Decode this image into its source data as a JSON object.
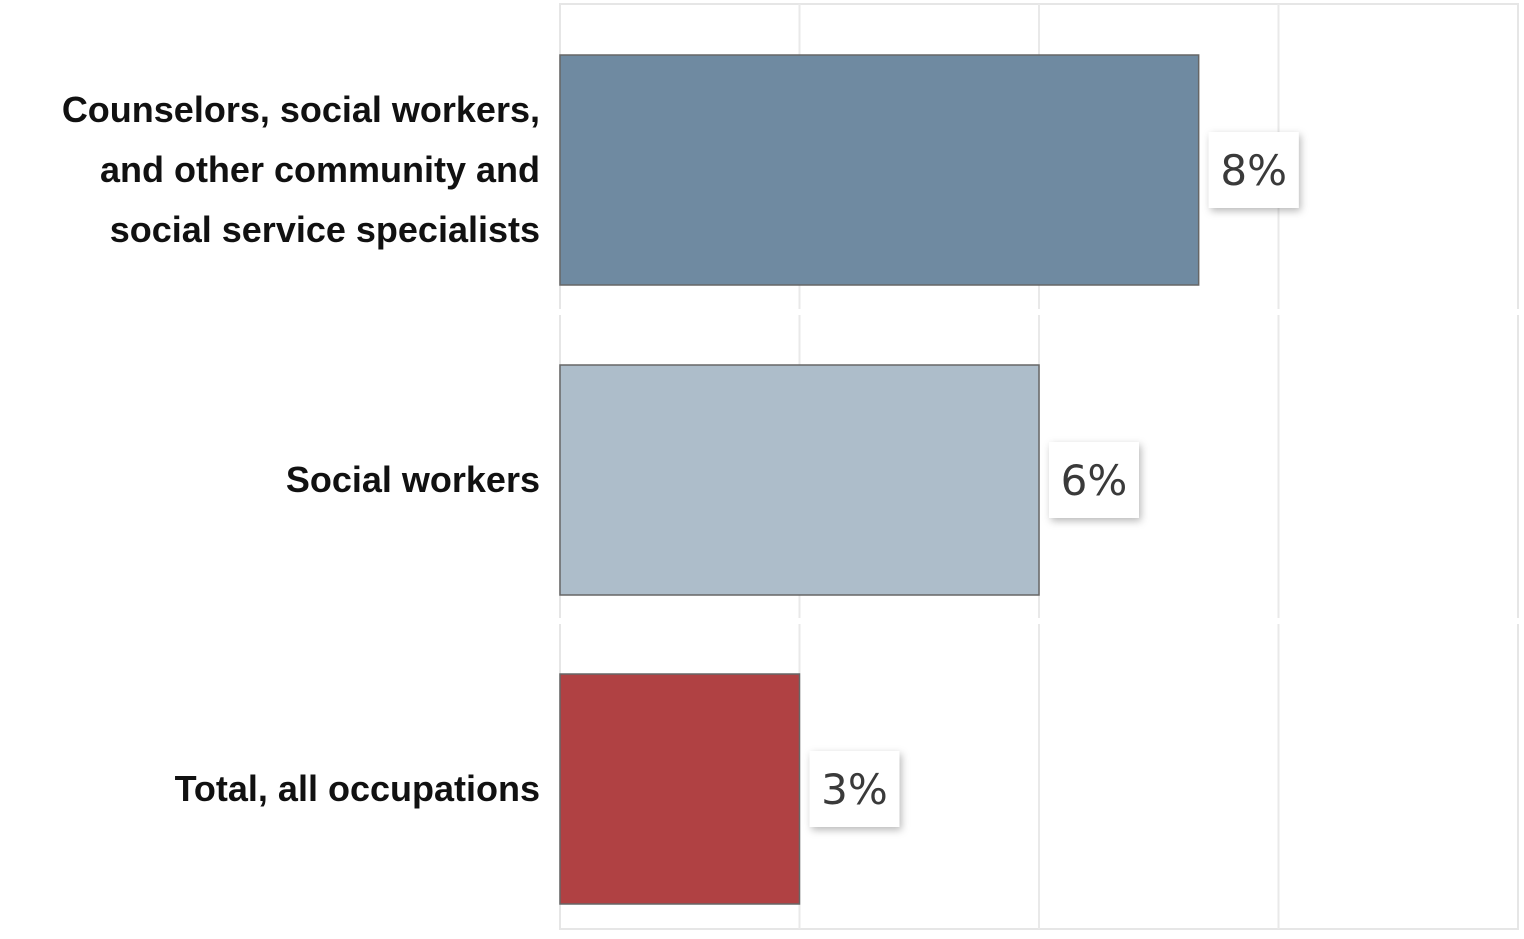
{
  "chart_data": {
    "type": "bar",
    "orientation": "horizontal",
    "categories": [
      [
        "Counselors, social workers,",
        "and other community and",
        "social service specialists"
      ],
      [
        "Social workers"
      ],
      [
        "Total, all occupations"
      ]
    ],
    "values": [
      8,
      6,
      3
    ],
    "value_labels": [
      "8%",
      "6%",
      "3%"
    ],
    "xlim": [
      0,
      12
    ],
    "grid": true,
    "colors": [
      "#6f8aa1",
      "#adbdca",
      "#b04143"
    ]
  }
}
